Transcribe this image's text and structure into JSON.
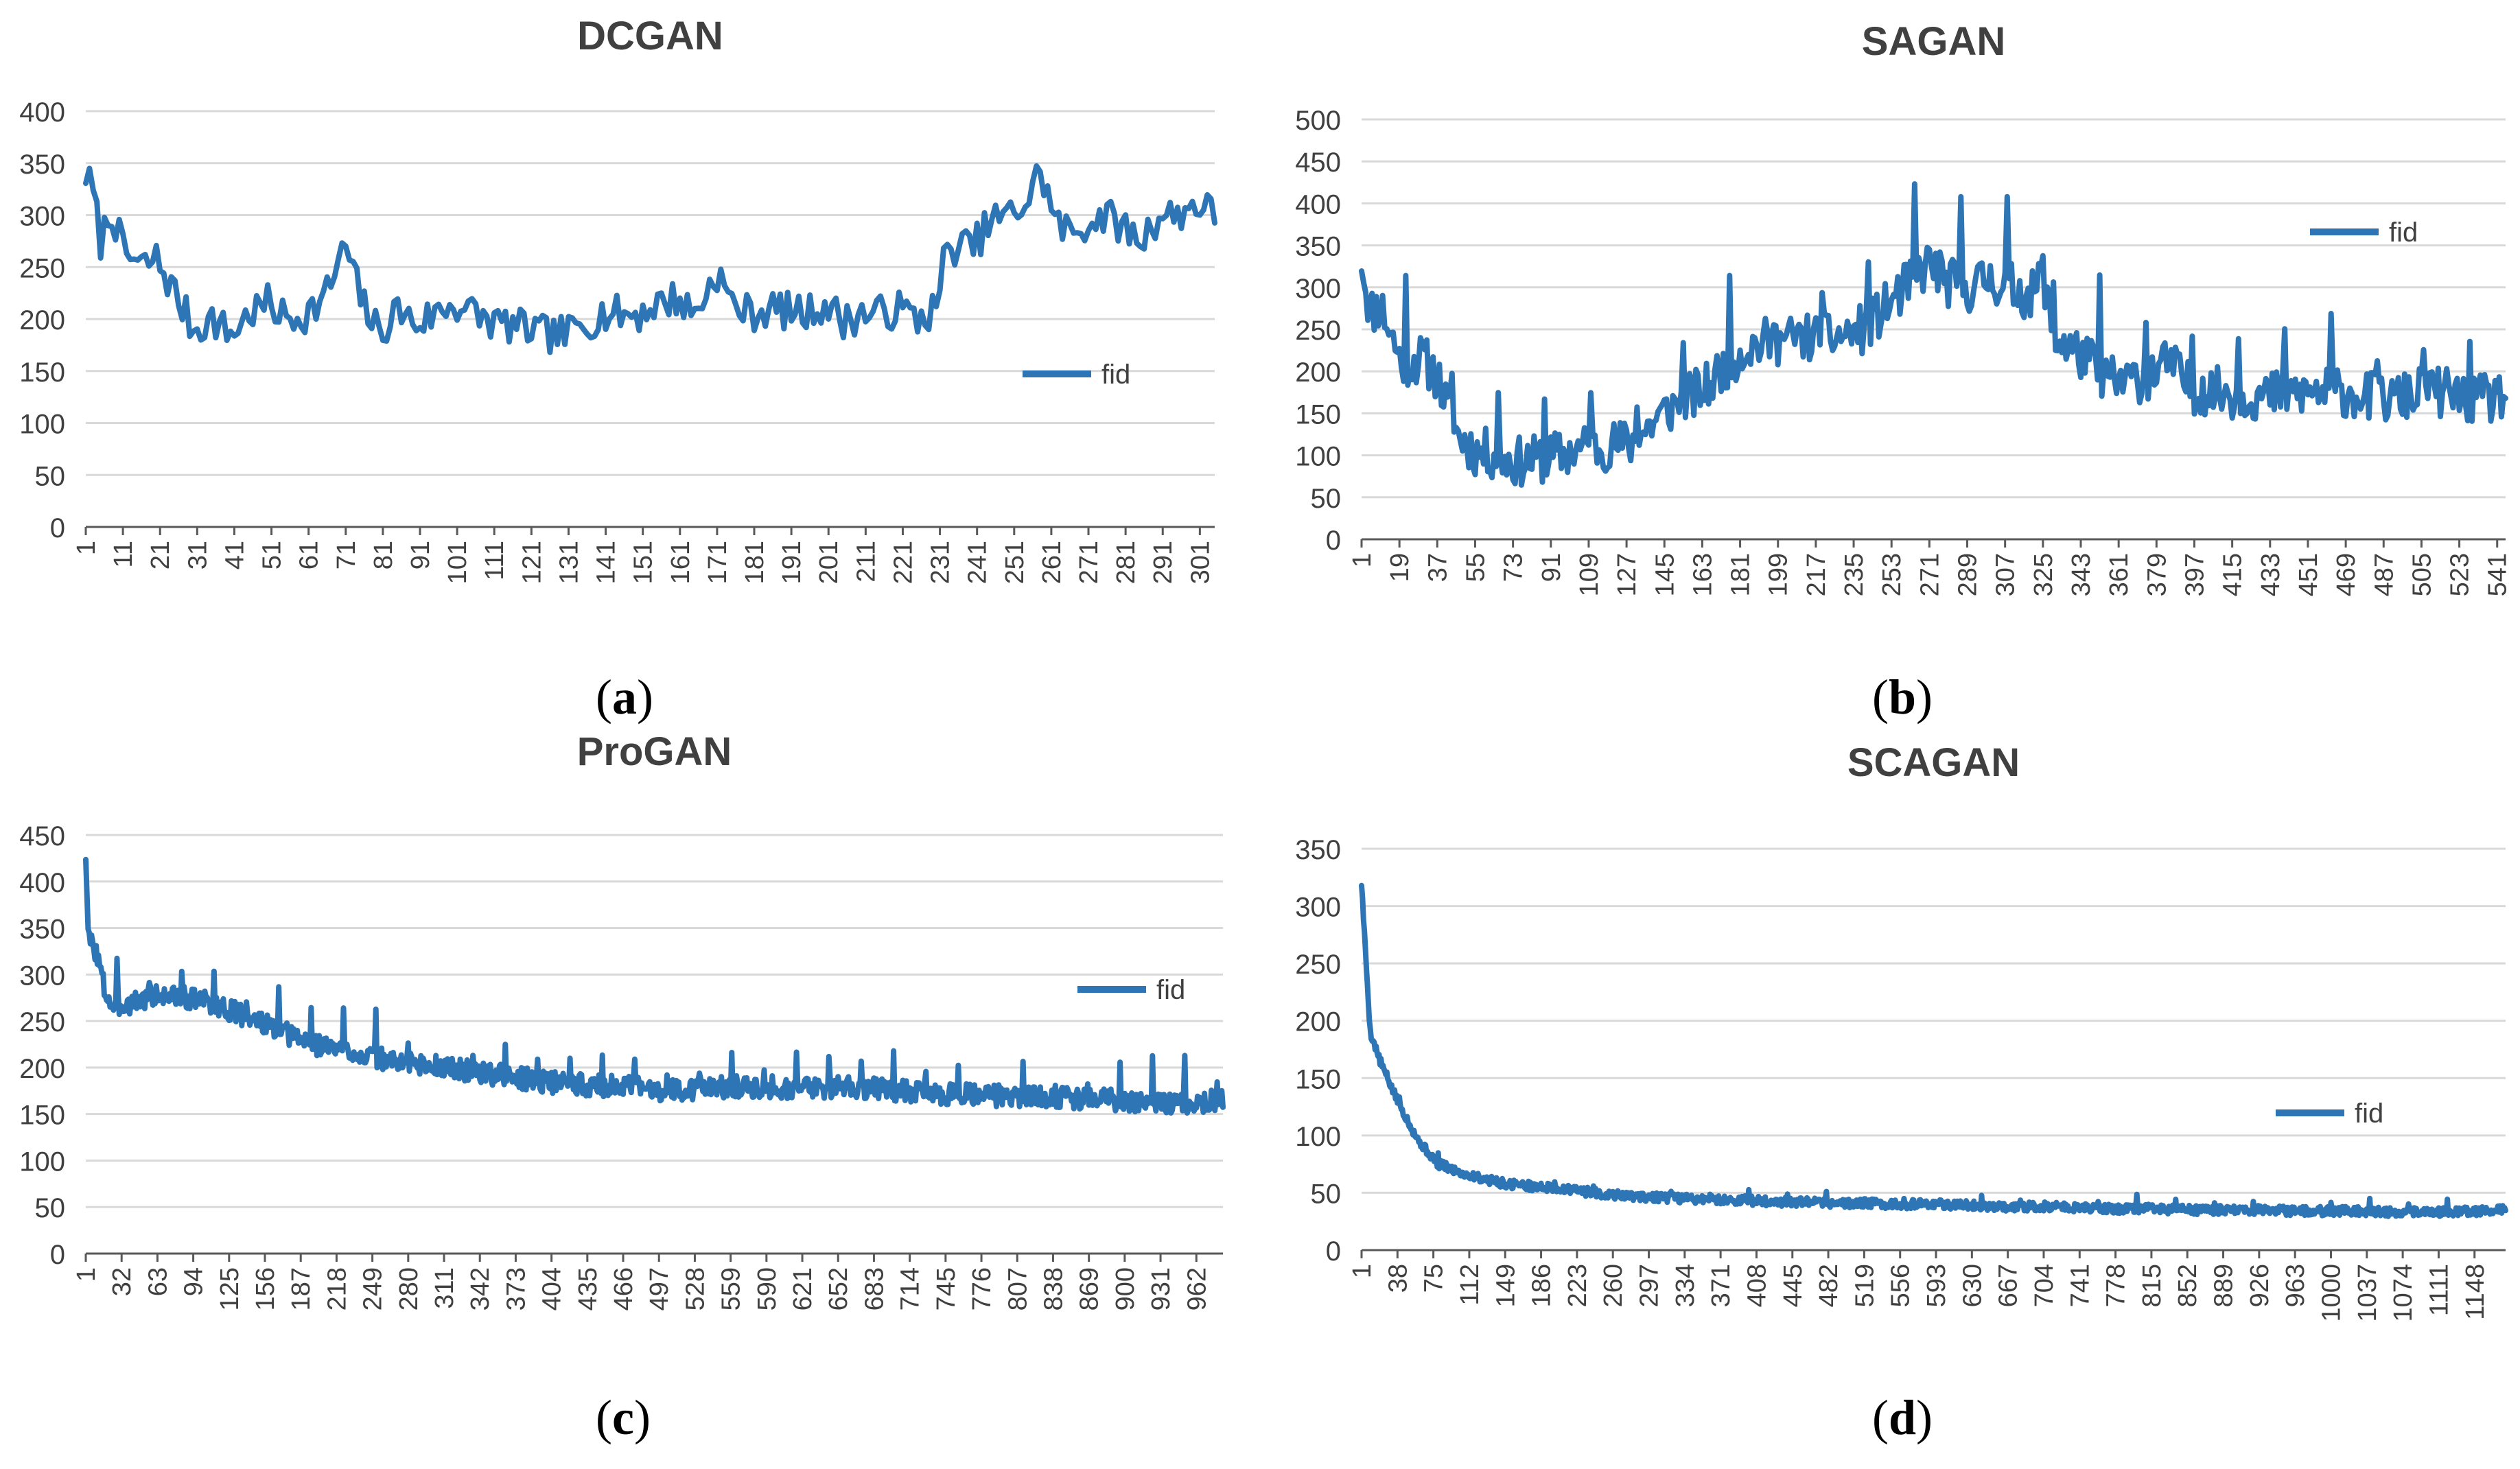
{
  "colors": {
    "line": "#2E75B6",
    "grid": "#D9D9D9",
    "axis": "#595959",
    "title": "#404040",
    "tick": "#404040"
  },
  "captions": {
    "a": "a",
    "b": "b",
    "c": "c",
    "d": "d"
  },
  "chart_data": [
    {
      "id": "a",
      "type": "line",
      "title": "DCGAN",
      "legend": "fid",
      "legend_position": "right",
      "ylim": [
        0,
        400
      ],
      "yticks": [
        0,
        50,
        100,
        150,
        200,
        250,
        300,
        350,
        400
      ],
      "n_points": 305,
      "tick_start": 1,
      "tick_step": 10,
      "xticks": [
        "1",
        "11",
        "21",
        "31",
        "41",
        "51",
        "61",
        "71",
        "81",
        "91",
        "101",
        "111",
        "121",
        "131",
        "141",
        "151",
        "161",
        "171",
        "181",
        "191",
        "201",
        "211",
        "221",
        "231",
        "241",
        "251",
        "261",
        "271",
        "281",
        "291",
        "301"
      ],
      "keypoints": [
        [
          1,
          340
        ],
        [
          3,
          320
        ],
        [
          5,
          275
        ],
        [
          8,
          305
        ],
        [
          11,
          265
        ],
        [
          16,
          250
        ],
        [
          20,
          258
        ],
        [
          25,
          225
        ],
        [
          30,
          190
        ],
        [
          35,
          200
        ],
        [
          40,
          185
        ],
        [
          45,
          205
        ],
        [
          50,
          215
        ],
        [
          55,
          200
        ],
        [
          60,
          205
        ],
        [
          65,
          218
        ],
        [
          71,
          270
        ],
        [
          75,
          220
        ],
        [
          80,
          185
        ],
        [
          85,
          210
        ],
        [
          90,
          195
        ],
        [
          100,
          215
        ],
        [
          110,
          198
        ],
        [
          120,
          190
        ],
        [
          125,
          185
        ],
        [
          130,
          185
        ],
        [
          135,
          195
        ],
        [
          140,
          205
        ],
        [
          150,
          205
        ],
        [
          155,
          215
        ],
        [
          160,
          220
        ],
        [
          165,
          205
        ],
        [
          171,
          245
        ],
        [
          175,
          215
        ],
        [
          180,
          205
        ],
        [
          185,
          210
        ],
        [
          190,
          208
        ],
        [
          195,
          205
        ],
        [
          200,
          215
        ],
        [
          205,
          198
        ],
        [
          210,
          205
        ],
        [
          215,
          205
        ],
        [
          220,
          210
        ],
        [
          225,
          200
        ],
        [
          230,
          210
        ],
        [
          232,
          255
        ],
        [
          235,
          270
        ],
        [
          240,
          270
        ],
        [
          245,
          295
        ],
        [
          250,
          300
        ],
        [
          255,
          315
        ],
        [
          258,
          345
        ],
        [
          262,
          295
        ],
        [
          266,
          282
        ],
        [
          270,
          290
        ],
        [
          275,
          300
        ],
        [
          280,
          290
        ],
        [
          285,
          275
        ],
        [
          290,
          300
        ],
        [
          295,
          300
        ],
        [
          300,
          312
        ],
        [
          305,
          300
        ]
      ],
      "amplitude": 18,
      "spike_every": 0,
      "spike_amp": 0,
      "seed": 7
    },
    {
      "id": "b",
      "type": "line",
      "title": "SAGAN",
      "legend": "fid",
      "legend_position": "right",
      "ylim": [
        0,
        500
      ],
      "yticks": [
        0,
        50,
        100,
        150,
        200,
        250,
        300,
        350,
        400,
        450,
        500
      ],
      "n_points": 545,
      "tick_start": 1,
      "tick_step": 18,
      "xticks": [
        "1",
        "19",
        "37",
        "55",
        "73",
        "91",
        "109",
        "127",
        "145",
        "163",
        "181",
        "199",
        "217",
        "235",
        "253",
        "271",
        "289",
        "307",
        "325",
        "343",
        "361",
        "379",
        "397",
        "415",
        "433",
        "451",
        "469",
        "487",
        "505",
        "523",
        "541"
      ],
      "keypoints": [
        [
          1,
          335
        ],
        [
          5,
          270
        ],
        [
          10,
          280
        ],
        [
          20,
          210
        ],
        [
          30,
          215
        ],
        [
          37,
          195
        ],
        [
          45,
          130
        ],
        [
          55,
          105
        ],
        [
          65,
          100
        ],
        [
          73,
          92
        ],
        [
          85,
          95
        ],
        [
          95,
          100
        ],
        [
          105,
          108
        ],
        [
          120,
          112
        ],
        [
          130,
          115
        ],
        [
          140,
          140
        ],
        [
          150,
          160
        ],
        [
          165,
          180
        ],
        [
          175,
          210
        ],
        [
          185,
          230
        ],
        [
          195,
          235
        ],
        [
          210,
          240
        ],
        [
          225,
          240
        ],
        [
          240,
          250
        ],
        [
          250,
          275
        ],
        [
          260,
          300
        ],
        [
          271,
          330
        ],
        [
          280,
          305
        ],
        [
          290,
          300
        ],
        [
          300,
          310
        ],
        [
          310,
          300
        ],
        [
          320,
          290
        ],
        [
          325,
          320
        ],
        [
          330,
          240
        ],
        [
          340,
          225
        ],
        [
          350,
          205
        ],
        [
          360,
          185
        ],
        [
          375,
          195
        ],
        [
          385,
          210
        ],
        [
          395,
          180
        ],
        [
          410,
          175
        ],
        [
          430,
          170
        ],
        [
          450,
          175
        ],
        [
          470,
          175
        ],
        [
          490,
          165
        ],
        [
          505,
          175
        ],
        [
          515,
          175
        ],
        [
          530,
          165
        ],
        [
          545,
          170
        ]
      ],
      "amplitude": 30,
      "spike_every": 22,
      "spike_amp": 70,
      "seed": 11
    },
    {
      "id": "c",
      "type": "line",
      "title": "ProGAN",
      "legend": "fid",
      "legend_position": "right",
      "ylim": [
        0,
        450
      ],
      "yticks": [
        0,
        50,
        100,
        150,
        200,
        250,
        300,
        350,
        400,
        450
      ],
      "n_points": 985,
      "tick_start": 1,
      "tick_step": 31,
      "xticks": [
        "1",
        "32",
        "63",
        "94",
        "125",
        "156",
        "187",
        "218",
        "249",
        "280",
        "311",
        "342",
        "373",
        "404",
        "435",
        "466",
        "497",
        "528",
        "559",
        "590",
        "621",
        "652",
        "683",
        "714",
        "745",
        "776",
        "807",
        "838",
        "869",
        "900",
        "931",
        "962"
      ],
      "keypoints": [
        [
          1,
          430
        ],
        [
          3,
          340
        ],
        [
          10,
          325
        ],
        [
          18,
          280
        ],
        [
          25,
          265
        ],
        [
          40,
          270
        ],
        [
          63,
          278
        ],
        [
          90,
          275
        ],
        [
          110,
          270
        ],
        [
          125,
          262
        ],
        [
          150,
          250
        ],
        [
          170,
          238
        ],
        [
          200,
          225
        ],
        [
          230,
          218
        ],
        [
          260,
          208
        ],
        [
          300,
          202
        ],
        [
          340,
          195
        ],
        [
          380,
          188
        ],
        [
          420,
          182
        ],
        [
          460,
          180
        ],
        [
          500,
          176
        ],
        [
          540,
          178
        ],
        [
          580,
          180
        ],
        [
          620,
          178
        ],
        [
          660,
          180
        ],
        [
          700,
          176
        ],
        [
          740,
          172
        ],
        [
          780,
          170
        ],
        [
          820,
          170
        ],
        [
          860,
          166
        ],
        [
          900,
          165
        ],
        [
          940,
          162
        ],
        [
          985,
          165
        ]
      ],
      "amplitude": 12,
      "spike_every": 28,
      "spike_amp": 30,
      "seed": 3
    },
    {
      "id": "d",
      "type": "line",
      "title": "SCAGAN",
      "legend": "fid",
      "legend_position": "right",
      "ylim": [
        0,
        350
      ],
      "yticks": [
        0,
        50,
        100,
        150,
        200,
        250,
        300,
        350
      ],
      "n_points": 1180,
      "tick_start": 1,
      "tick_step": 37,
      "xticks": [
        "1",
        "38",
        "75",
        "112",
        "149",
        "186",
        "223",
        "260",
        "297",
        "334",
        "371",
        "408",
        "445",
        "482",
        "519",
        "556",
        "593",
        "630",
        "667",
        "704",
        "741",
        "778",
        "815",
        "852",
        "889",
        "926",
        "963",
        "1000",
        "1037",
        "1074",
        "1111",
        "1148"
      ],
      "keypoints": [
        [
          1,
          320
        ],
        [
          5,
          260
        ],
        [
          10,
          190
        ],
        [
          20,
          165
        ],
        [
          38,
          130
        ],
        [
          60,
          95
        ],
        [
          80,
          75
        ],
        [
          112,
          65
        ],
        [
          149,
          58
        ],
        [
          186,
          55
        ],
        [
          223,
          52
        ],
        [
          260,
          48
        ],
        [
          297,
          46
        ],
        [
          334,
          45
        ],
        [
          371,
          44
        ],
        [
          408,
          43
        ],
        [
          445,
          42
        ],
        [
          482,
          41
        ],
        [
          519,
          41
        ],
        [
          556,
          40
        ],
        [
          593,
          40
        ],
        [
          630,
          39
        ],
        [
          667,
          38
        ],
        [
          704,
          38
        ],
        [
          741,
          37
        ],
        [
          778,
          36
        ],
        [
          815,
          36
        ],
        [
          852,
          35
        ],
        [
          889,
          35
        ],
        [
          926,
          35
        ],
        [
          963,
          34
        ],
        [
          1000,
          34
        ],
        [
          1037,
          34
        ],
        [
          1074,
          33
        ],
        [
          1111,
          33
        ],
        [
          1148,
          34
        ],
        [
          1180,
          35
        ]
      ],
      "amplitude": 4,
      "spike_every": 40,
      "spike_amp": 6,
      "seed": 5
    }
  ]
}
